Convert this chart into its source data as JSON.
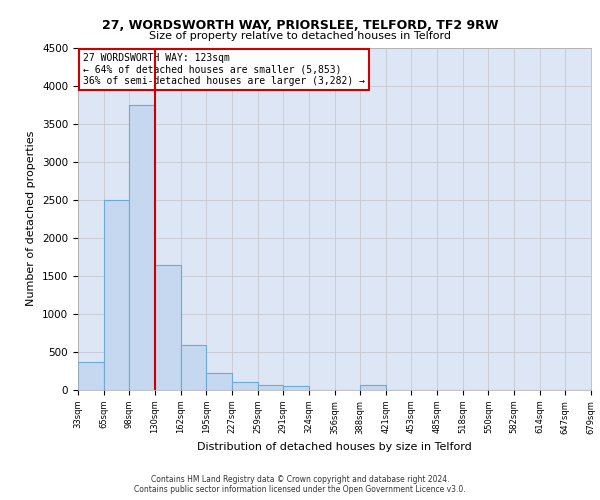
{
  "title1": "27, WORDSWORTH WAY, PRIORSLEE, TELFORD, TF2 9RW",
  "title2": "Size of property relative to detached houses in Telford",
  "xlabel": "Distribution of detached houses by size in Telford",
  "ylabel": "Number of detached properties",
  "bar_values": [
    370,
    2500,
    3750,
    1640,
    590,
    220,
    100,
    60,
    50,
    0,
    0,
    60,
    0,
    0,
    0,
    0,
    0,
    0,
    0,
    0
  ],
  "categories": [
    "33sqm",
    "65sqm",
    "98sqm",
    "130sqm",
    "162sqm",
    "195sqm",
    "227sqm",
    "259sqm",
    "291sqm",
    "324sqm",
    "356sqm",
    "388sqm",
    "421sqm",
    "453sqm",
    "485sqm",
    "518sqm",
    "550sqm",
    "582sqm",
    "614sqm",
    "647sqm",
    "679sqm"
  ],
  "bar_color": "#c5d8ef",
  "bar_edgecolor": "#6aaadd",
  "vline_color": "#cc0000",
  "vline_pos": 3.0,
  "annotation_text": "27 WORDSWORTH WAY: 123sqm\n← 64% of detached houses are smaller (5,853)\n36% of semi-detached houses are larger (3,282) →",
  "annotation_box_facecolor": "#ffffff",
  "annotation_box_edgecolor": "#cc0000",
  "ylim_max": 4500,
  "yticks": [
    0,
    500,
    1000,
    1500,
    2000,
    2500,
    3000,
    3500,
    4000,
    4500
  ],
  "grid_color": "#c8c8d0",
  "ax_bg_color": "#dce6f5",
  "footer1": "Contains HM Land Registry data © Crown copyright and database right 2024.",
  "footer2": "Contains public sector information licensed under the Open Government Licence v3.0."
}
